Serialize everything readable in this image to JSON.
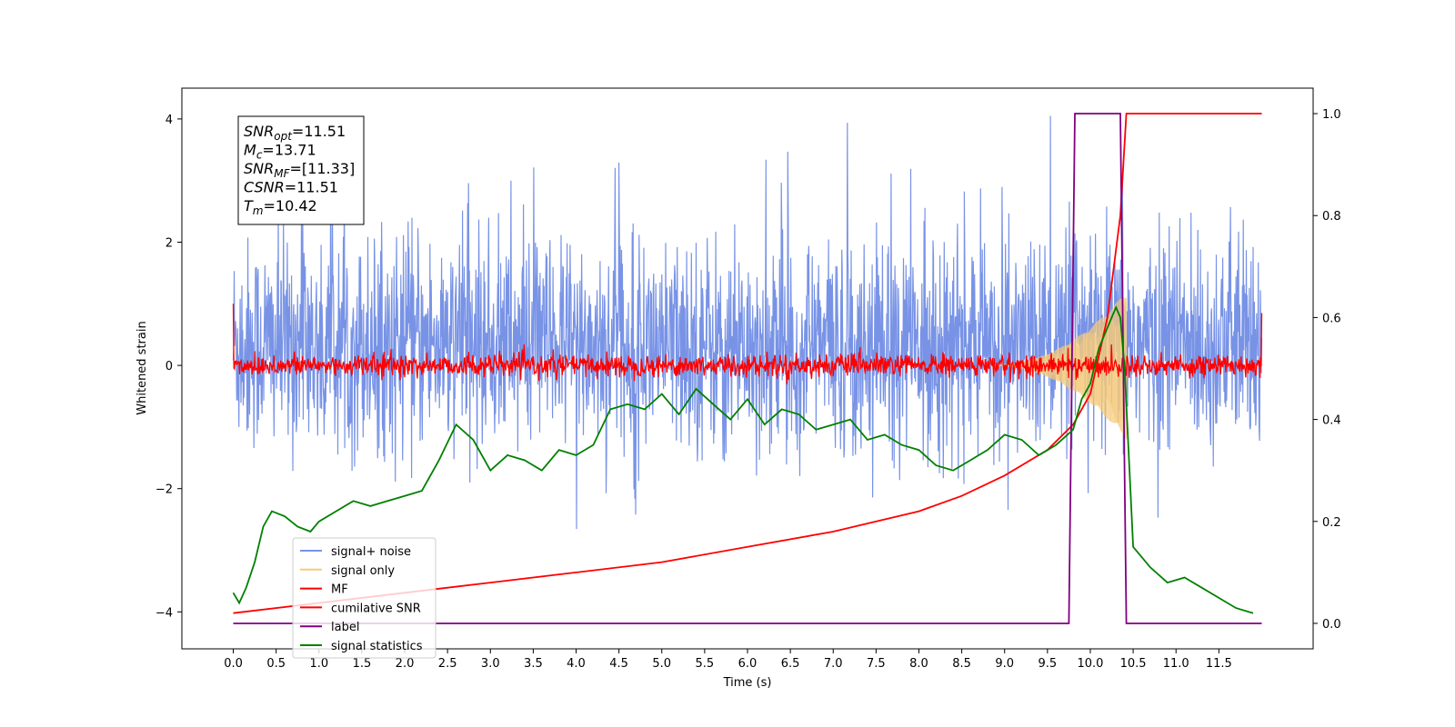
{
  "chart_data": {
    "type": "line",
    "xlabel": "Time (s)",
    "ylabel": "Whitened strain",
    "xlim": [
      -0.6,
      12.6
    ],
    "ylim": [
      -4.6,
      4.5
    ],
    "y2lim": [
      -0.05,
      1.05
    ],
    "x_ticks": [
      "0.0",
      "0.5",
      "1.0",
      "1.5",
      "2.0",
      "2.5",
      "3.0",
      "3.5",
      "4.0",
      "4.5",
      "5.0",
      "5.5",
      "6.0",
      "6.5",
      "7.0",
      "7.5",
      "8.0",
      "8.5",
      "9.0",
      "9.5",
      "10.0",
      "10.5",
      "11.0",
      "11.5"
    ],
    "y_ticks": [
      "4",
      "2",
      "0",
      "−2",
      "−4"
    ],
    "y2_ticks": [
      "1.0",
      "0.8",
      "0.6",
      "0.4",
      "0.2",
      "0.0"
    ],
    "grid": false,
    "legend_position": "bottom-left",
    "annotation": {
      "lines": [
        {
          "var": "SNR",
          "sub": "opt",
          "value": "=11.51"
        },
        {
          "var": "M",
          "sub": "c",
          "value": "=13.71"
        },
        {
          "var": "SNR",
          "sub": "MF",
          "value": "=[11.33]"
        },
        {
          "var": "CSNR",
          "sub": "",
          "value": "=11.51"
        },
        {
          "var": "T",
          "sub": "m",
          "value": "=10.42"
        }
      ]
    },
    "series": [
      {
        "name": "signal+ noise",
        "color": "#7893e6",
        "axis": "left",
        "description": "noise band roughly between -2 and 2.5 with spikes up to about 4"
      },
      {
        "name": "signal only",
        "color": "#f5c97a",
        "axis": "left",
        "chirp": {
          "start_time": 8.8,
          "end_time": 10.42,
          "peak_amplitude": 1.2
        }
      },
      {
        "name": "MF",
        "color": "#ff0000",
        "axis": "left",
        "description": "matched filter output near 0 with noise amplitude about 0.15"
      },
      {
        "name": "cumilative SNR",
        "color": "#ff0000",
        "axis": "right",
        "x": [
          0.0,
          1.0,
          2.0,
          3.0,
          4.0,
          5.0,
          6.0,
          7.0,
          8.0,
          8.5,
          9.0,
          9.5,
          9.8,
          10.0,
          10.2,
          10.35,
          10.42,
          12.0
        ],
        "values": [
          0.02,
          0.04,
          0.06,
          0.08,
          0.1,
          0.12,
          0.15,
          0.18,
          0.22,
          0.25,
          0.29,
          0.34,
          0.39,
          0.45,
          0.6,
          0.8,
          1.0,
          1.0
        ]
      },
      {
        "name": "label",
        "color": "#800080",
        "axis": "right",
        "x": [
          0.0,
          9.75,
          9.82,
          10.35,
          10.42,
          12.0
        ],
        "values": [
          0.0,
          0.0,
          1.0,
          1.0,
          0.0,
          0.0
        ]
      },
      {
        "name": "signal statistics",
        "color": "#008000",
        "axis": "right",
        "x": [
          0.0,
          0.07,
          0.15,
          0.25,
          0.35,
          0.45,
          0.6,
          0.75,
          0.9,
          1.0,
          1.2,
          1.4,
          1.6,
          1.8,
          2.0,
          2.2,
          2.4,
          2.6,
          2.8,
          3.0,
          3.2,
          3.4,
          3.6,
          3.8,
          4.0,
          4.2,
          4.4,
          4.6,
          4.8,
          5.0,
          5.2,
          5.4,
          5.6,
          5.8,
          6.0,
          6.2,
          6.4,
          6.6,
          6.8,
          7.0,
          7.2,
          7.4,
          7.6,
          7.8,
          8.0,
          8.2,
          8.4,
          8.6,
          8.8,
          9.0,
          9.2,
          9.4,
          9.6,
          9.8,
          9.9,
          10.0,
          10.1,
          10.2,
          10.3,
          10.35,
          10.4,
          10.5,
          10.7,
          10.9,
          11.1,
          11.3,
          11.5,
          11.7,
          11.9
        ],
        "values": [
          0.06,
          0.04,
          0.07,
          0.12,
          0.19,
          0.22,
          0.21,
          0.19,
          0.18,
          0.2,
          0.22,
          0.24,
          0.23,
          0.24,
          0.25,
          0.26,
          0.32,
          0.39,
          0.36,
          0.3,
          0.33,
          0.32,
          0.3,
          0.34,
          0.33,
          0.35,
          0.42,
          0.43,
          0.42,
          0.45,
          0.41,
          0.46,
          0.43,
          0.4,
          0.44,
          0.39,
          0.42,
          0.41,
          0.38,
          0.39,
          0.4,
          0.36,
          0.37,
          0.35,
          0.34,
          0.31,
          0.3,
          0.32,
          0.34,
          0.37,
          0.36,
          0.33,
          0.35,
          0.38,
          0.44,
          0.47,
          0.54,
          0.58,
          0.62,
          0.6,
          0.5,
          0.15,
          0.11,
          0.08,
          0.09,
          0.07,
          0.05,
          0.03,
          0.02
        ]
      }
    ]
  }
}
